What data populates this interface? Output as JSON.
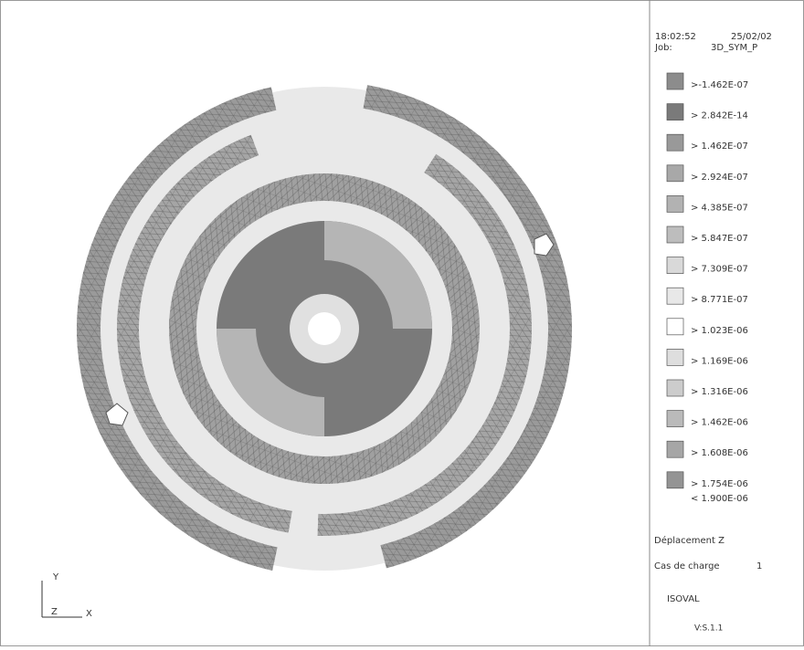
{
  "header": {
    "time": "18:02:52",
    "date": "25/02/02",
    "job_label": "Job:",
    "job": "3D_SYM_P"
  },
  "legend": {
    "items": [
      {
        "label": ">-1.462E-07",
        "color": "#8c8c8c"
      },
      {
        "label": "> 2.842E-14",
        "color": "#7a7a7a"
      },
      {
        "label": "> 1.462E-07",
        "color": "#999999"
      },
      {
        "label": "> 2.924E-07",
        "color": "#a8a8a8"
      },
      {
        "label": "> 4.385E-07",
        "color": "#b2b2b2"
      },
      {
        "label": "> 5.847E-07",
        "color": "#bdbdbd"
      },
      {
        "label": "> 7.309E-07",
        "color": "#d9d9d9"
      },
      {
        "label": "> 8.771E-07",
        "color": "#e8e8e8"
      },
      {
        "label": "> 1.023E-06",
        "color": "#ffffff"
      },
      {
        "label": "> 1.169E-06",
        "color": "#dedede"
      },
      {
        "label": "> 1.316E-06",
        "color": "#cccccc"
      },
      {
        "label": "> 1.462E-06",
        "color": "#bababa"
      },
      {
        "label": "> 1.608E-06",
        "color": "#a6a6a6"
      },
      {
        "label": "> 1.754E-06",
        "color": "#949494"
      }
    ],
    "last": "< 1.900E-06"
  },
  "footer": {
    "quantity": "Déplacement Z",
    "load_label": "Cas de charge",
    "load": "1",
    "program": "ISOVAL",
    "version": "V:S.1.1"
  },
  "axes": {
    "y": "Y",
    "x": "X",
    "z": "Z"
  }
}
